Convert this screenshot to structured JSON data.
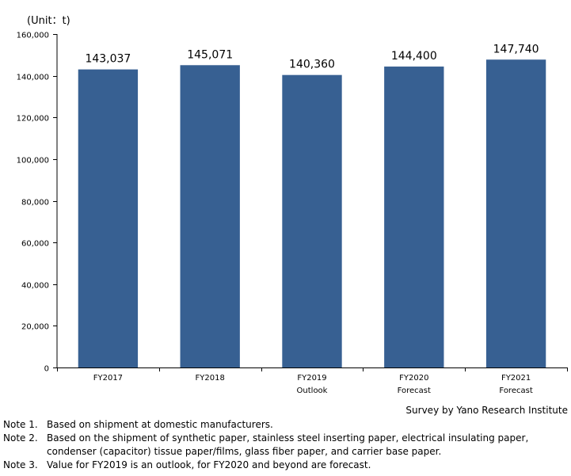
{
  "unit_label": "(Unit：t)",
  "chart_data": {
    "type": "bar",
    "categories": [
      "FY2017",
      "FY2018",
      "FY2019",
      "FY2020",
      "FY2021"
    ],
    "category_sublabels": [
      "",
      "",
      "Outlook",
      "Forecast",
      "Forecast"
    ],
    "values": [
      143037,
      145071,
      140360,
      144400,
      147740
    ],
    "value_labels": [
      "143,037",
      "145,071",
      "140,360",
      "144,400",
      "147,740"
    ],
    "ylim": [
      0,
      160000
    ],
    "yticks": [
      0,
      20000,
      40000,
      60000,
      80000,
      100000,
      120000,
      140000,
      160000
    ],
    "ytick_labels": [
      "0",
      "20,000",
      "40,000",
      "60,000",
      "80,000",
      "100,000",
      "120,000",
      "140,000",
      "160,000"
    ],
    "bar_color": "#376092",
    "grid": false,
    "title": "",
    "xlabel": "",
    "ylabel": ""
  },
  "source": "Survey by Yano Research Institute",
  "notes": [
    {
      "label": "Note 1.",
      "lines": [
        "Based on shipment at domestic manufacturers."
      ]
    },
    {
      "label": "Note 2.",
      "lines": [
        "Based on the shipment of synthetic paper, stainless steel inserting paper, electrical insulating paper,",
        "condenser (capacitor) tissue paper/films, glass fiber paper, and carrier base paper."
      ]
    },
    {
      "label": "Note 3.",
      "lines": [
        "Value for FY2019 is an outlook, for FY2020 and beyond are forecast."
      ]
    }
  ]
}
